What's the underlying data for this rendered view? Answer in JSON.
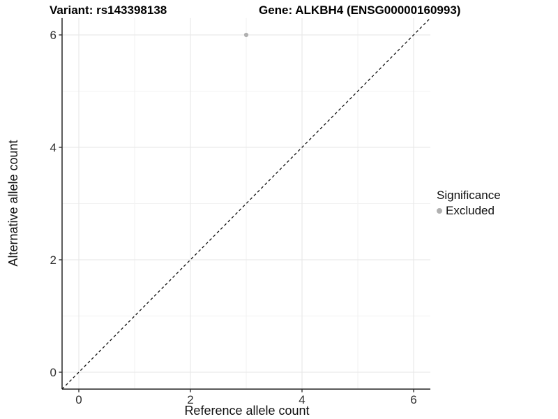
{
  "titles": {
    "variant": "Variant: rs143398138",
    "gene": "Gene: ALKBH4 (ENSG00000160993)"
  },
  "axes": {
    "x_label": "Reference allele count",
    "y_label": "Alternative allele count"
  },
  "legend": {
    "title": "Significance",
    "items": [
      {
        "label": "Excluded",
        "color": "#b0b0b0",
        "marker": "dot-icon"
      }
    ]
  },
  "colors": {
    "background": "#ffffff",
    "grid_major": "#e5e5e5",
    "grid_minor": "#f2f2f2",
    "axis_line": "#333333",
    "tick_text": "#303030",
    "reference_line": "#111111",
    "point": "#b0b0b0"
  },
  "chart_data": {
    "type": "scatter",
    "title": "Variant: rs143398138 — Gene: ALKBH4 (ENSG00000160993)",
    "xlabel": "Reference allele count",
    "ylabel": "Alternative allele count",
    "xlim": [
      -0.3,
      6.3
    ],
    "ylim": [
      -0.3,
      6.3
    ],
    "x_ticks": [
      0,
      2,
      4,
      6
    ],
    "y_ticks": [
      0,
      2,
      4,
      6
    ],
    "x_minor_ticks": [
      1,
      3,
      5
    ],
    "y_minor_ticks": [
      1,
      3,
      5
    ],
    "grid": true,
    "legend_position": "right",
    "series": [
      {
        "name": "Excluded",
        "color": "#b0b0b0",
        "points": [
          {
            "x": 3,
            "y": 6
          }
        ]
      }
    ],
    "reference_line": {
      "type": "identity y=x",
      "style": "dashed",
      "from": -0.3,
      "to": 6.3
    }
  }
}
